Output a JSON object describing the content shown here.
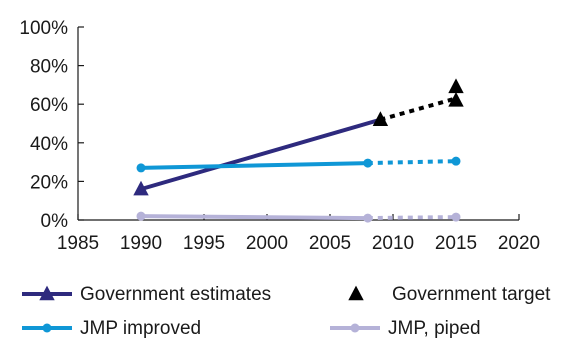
{
  "chart_data": {
    "type": "line",
    "xlim": [
      1985,
      2020
    ],
    "ylim": [
      0,
      100
    ],
    "x_ticks": [
      1985,
      1990,
      1995,
      2000,
      2005,
      2010,
      2015,
      2020
    ],
    "y_ticks": [
      0,
      20,
      40,
      60,
      80,
      100
    ],
    "y_tick_labels": [
      "0%",
      "20%",
      "40%",
      "60%",
      "80%",
      "100%"
    ],
    "grid": false,
    "legend": "bottom",
    "series": [
      {
        "name": "Government estimates",
        "color": "#2e2a7e",
        "marker": "triangle",
        "points": [
          [
            1990,
            16
          ],
          [
            2009,
            52
          ]
        ],
        "dashed_points": [
          [
            2009,
            52
          ],
          [
            2015,
            63
          ]
        ]
      },
      {
        "name": "Government target",
        "color": "#000000",
        "marker": "triangle",
        "points": [
          [
            2009,
            52
          ],
          [
            2015,
            69
          ],
          [
            2015,
            62
          ]
        ]
      },
      {
        "name": "JMP improved",
        "color": "#0f97d6",
        "marker": "circle",
        "points": [
          [
            1990,
            27
          ],
          [
            2008,
            29.5
          ]
        ],
        "dashed_points": [
          [
            2008,
            29.5
          ],
          [
            2015,
            30.5
          ]
        ]
      },
      {
        "name": "JMP, piped",
        "color": "#b5b2d8",
        "marker": "circle",
        "points": [
          [
            1990,
            2
          ],
          [
            2008,
            1
          ]
        ],
        "dashed_points": [
          [
            2008,
            1
          ],
          [
            2015,
            1.5
          ]
        ]
      }
    ]
  }
}
